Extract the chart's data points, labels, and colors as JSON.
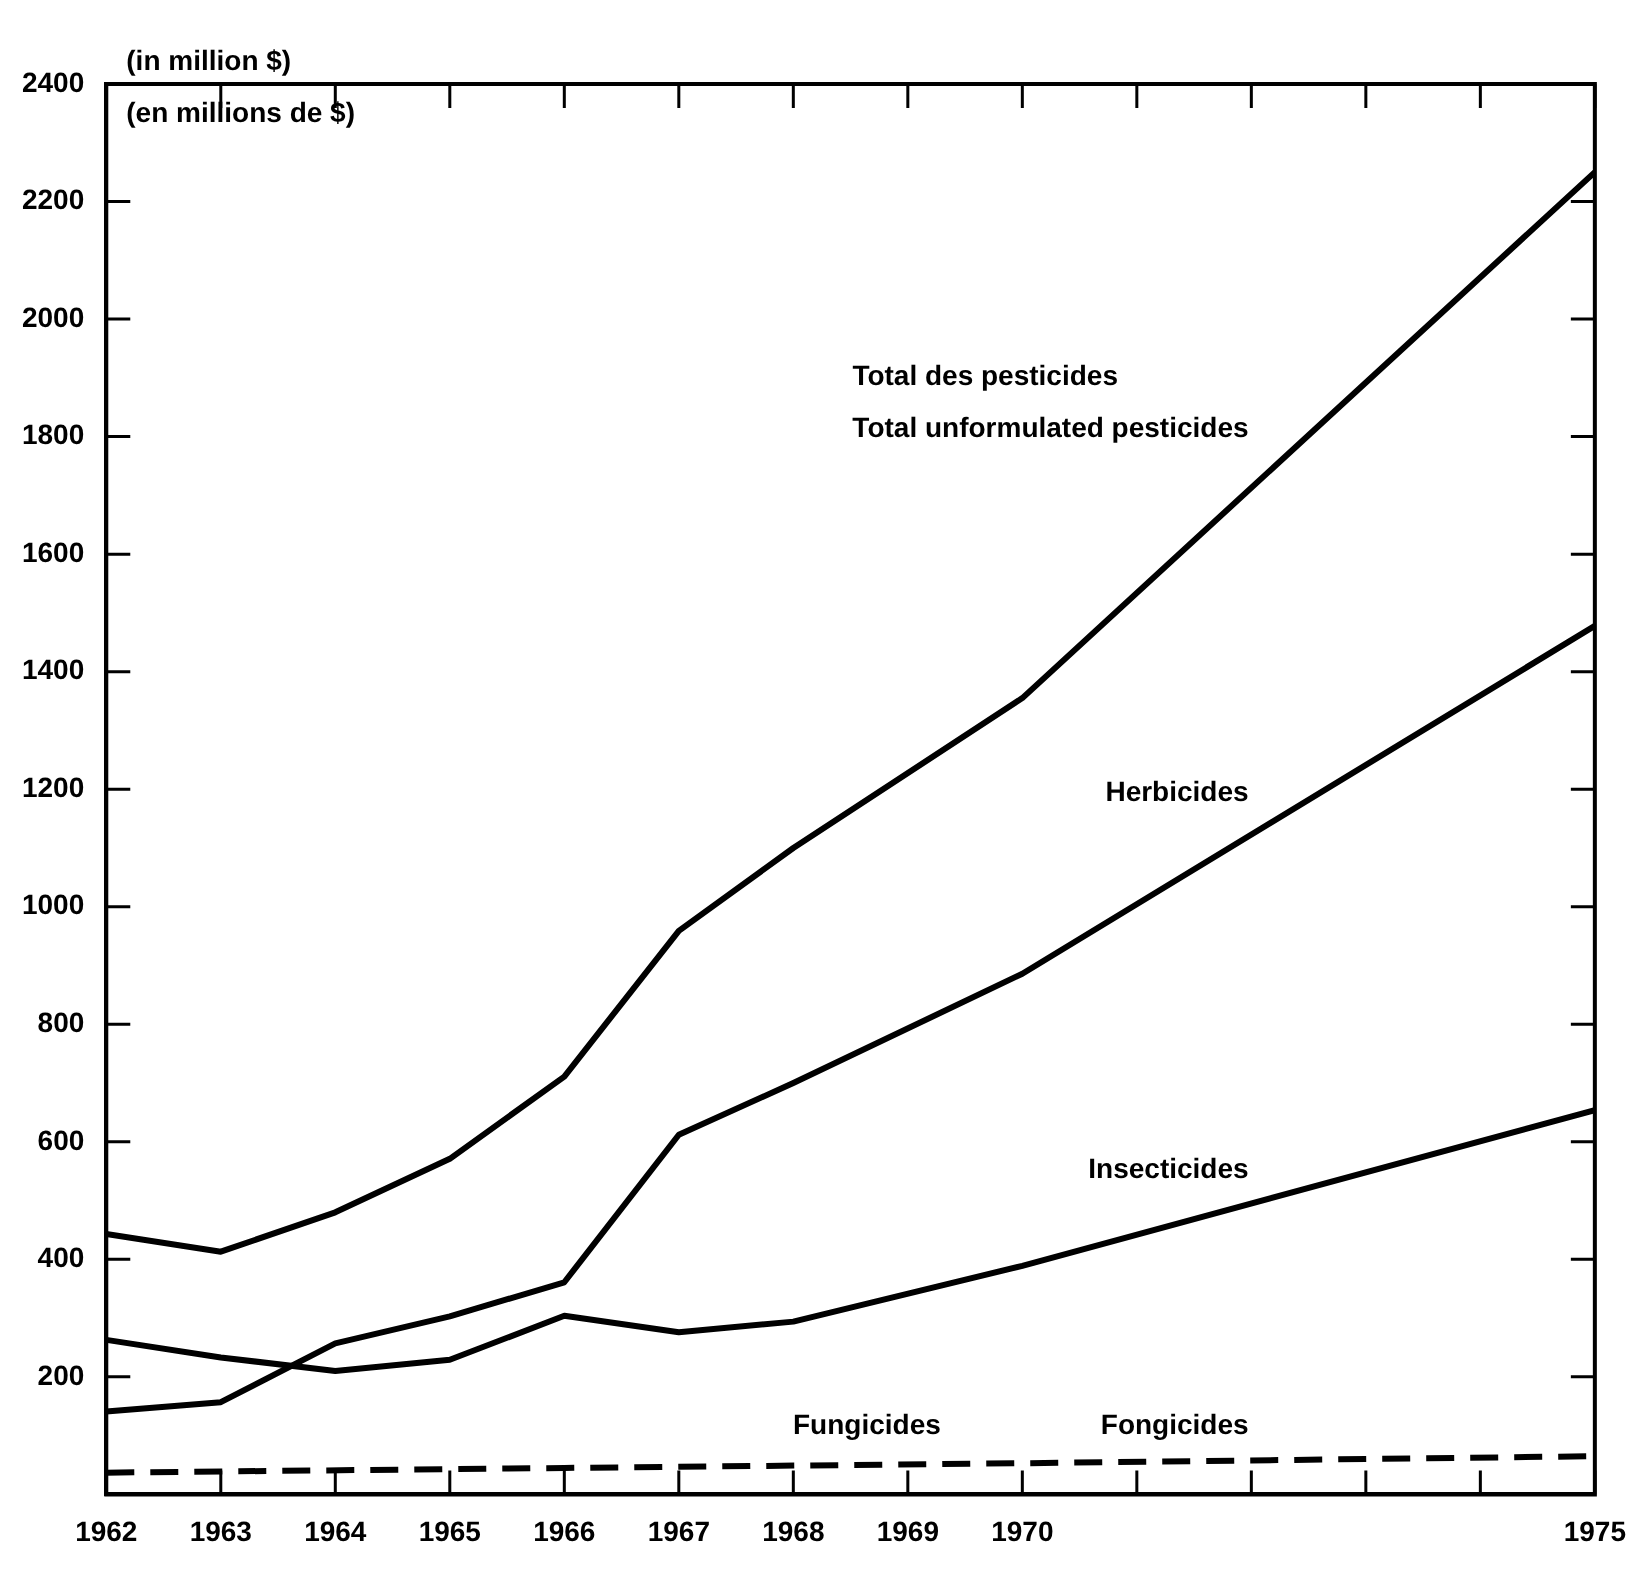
{
  "chart_data": {
    "type": "line",
    "ylabel": "(in million $)",
    "marker": "none",
    "xlim": [
      1962,
      1975
    ],
    "ylim": [
      0,
      2400
    ],
    "xticks": [
      1962,
      1963,
      1964,
      1965,
      1966,
      1967,
      1968,
      1969,
      1970,
      {
        "value": 1971,
        "label": null
      },
      {
        "value": 1972,
        "label": null
      },
      {
        "value": 1973,
        "label": null
      },
      {
        "value": 1974,
        "label": null
      },
      1975
    ],
    "yticks": [
      200,
      400,
      600,
      800,
      1000,
      1200,
      1400,
      1600,
      1800,
      2000,
      2200,
      2400
    ],
    "annotations": [
      "(en millions de $)",
      "Total des pesticides",
      "Fungicides"
    ],
    "series": [
      {
        "name": "Total unformulated pesticides",
        "color": "#000000",
        "x": [
          1962,
          1963,
          1964,
          1965,
          1966,
          1967,
          1968,
          1970,
          1975
        ],
        "values": [
          443,
          413,
          480,
          571,
          711,
          959,
          1100,
          1355,
          2250
        ]
      },
      {
        "name": "Herbicides",
        "color": "#000000",
        "x": [
          1962,
          1963,
          1964,
          1965,
          1966,
          1967,
          1968,
          1970,
          1975
        ],
        "values": [
          141,
          157,
          257,
          303,
          361,
          612,
          700,
          886,
          1478
        ]
      },
      {
        "name": "Insecticides",
        "color": "#000000",
        "x": [
          1962,
          1963,
          1964,
          1965,
          1966,
          1967,
          1968,
          1970,
          1975
        ],
        "values": [
          263,
          233,
          210,
          229,
          304,
          276,
          294,
          389,
          654
        ]
      },
      {
        "name": "Fongicides",
        "color": "#000000",
        "line_style": "dashed",
        "x": [
          1962,
          1966,
          1970,
          1975
        ],
        "values": [
          37,
          45,
          53,
          65
        ]
      }
    ]
  }
}
